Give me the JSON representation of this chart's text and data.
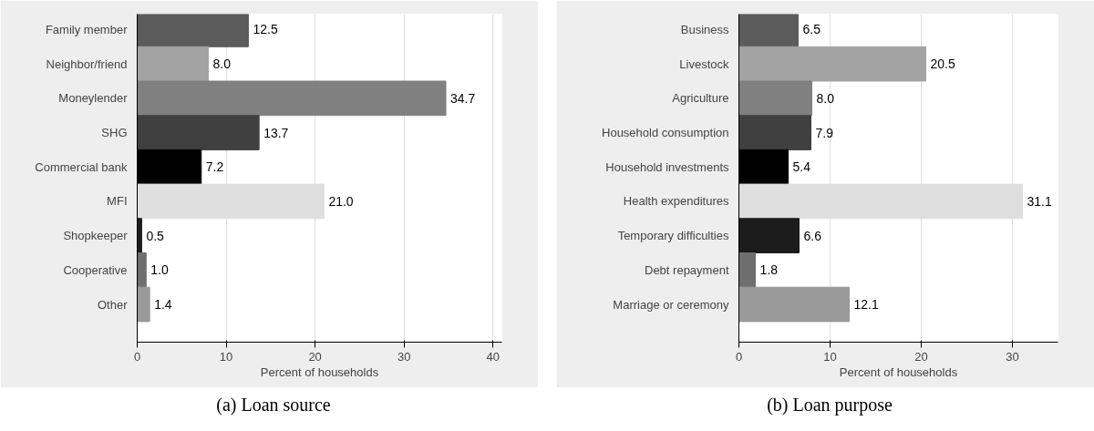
{
  "chart_data": [
    {
      "type": "bar",
      "orientation": "horizontal",
      "title": "(a) Loan source",
      "xlabel": "Percent of households",
      "categories": [
        "Family member",
        "Neighbor/friend",
        "Moneylender",
        "SHG",
        "Commercial bank",
        "MFI",
        "Shopkeeper",
        "Cooperative",
        "Other"
      ],
      "values": [
        12.5,
        8.0,
        34.7,
        13.7,
        7.2,
        21.0,
        0.5,
        1.0,
        1.4
      ],
      "value_labels": [
        "12.5",
        "8.0",
        "34.7",
        "13.7",
        "7.2",
        "21.0",
        "0.5",
        "1.0",
        "1.4"
      ],
      "colors": [
        "#5c5c5c",
        "#a3a3a3",
        "#808080",
        "#404040",
        "#000000",
        "#dedede",
        "#1c1c1c",
        "#6e6e6e",
        "#999999"
      ],
      "xlim": [
        0,
        41
      ],
      "xticks": [
        0,
        10,
        20,
        30,
        40
      ],
      "grid": "x"
    },
    {
      "type": "bar",
      "orientation": "horizontal",
      "title": "(b) Loan purpose",
      "xlabel": "Percent of households",
      "categories": [
        "Business",
        "Livestock",
        "Agriculture",
        "Household consumption",
        "Household investments",
        "Health expenditures",
        "Temporary difficulties",
        "Debt repayment",
        "Marriage or ceremony"
      ],
      "values": [
        6.5,
        20.5,
        8.0,
        7.9,
        5.4,
        31.1,
        6.6,
        1.8,
        12.1
      ],
      "value_labels": [
        "6.5",
        "20.5",
        "8.0",
        "7.9",
        "5.4",
        "31.1",
        "6.6",
        "1.8",
        "12.1"
      ],
      "colors": [
        "#5c5c5c",
        "#a3a3a3",
        "#808080",
        "#404040",
        "#000000",
        "#dedede",
        "#1c1c1c",
        "#6e6e6e",
        "#999999"
      ],
      "xlim": [
        0,
        35
      ],
      "xticks": [
        0,
        10,
        20,
        30
      ],
      "grid": "x"
    }
  ]
}
